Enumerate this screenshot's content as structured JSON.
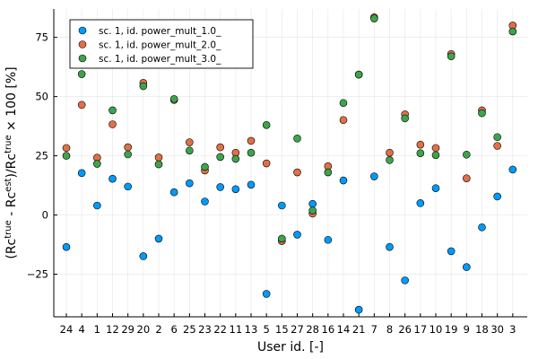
{
  "chart_data": {
    "type": "scatter",
    "xlabel": "User id. [-]",
    "ylabel_parts": [
      "(Rc",
      "true",
      " - Rc",
      "est",
      ")/Rc",
      "true",
      " × 100 [%]"
    ],
    "categories": [
      "24",
      "4",
      "1",
      "12",
      "29",
      "20",
      "2",
      "6",
      "25",
      "23",
      "22",
      "11",
      "13",
      "5",
      "15",
      "27",
      "28",
      "16",
      "14",
      "21",
      "7",
      "8",
      "26",
      "17",
      "10",
      "19",
      "9",
      "18",
      "30",
      "3"
    ],
    "ylim": [
      -43,
      87
    ],
    "yticks": [
      -25,
      0,
      25,
      50,
      75
    ],
    "ytick_labels": [
      "−25",
      "0",
      "25",
      "50",
      "75"
    ],
    "grid": true,
    "legend_position": "top-left",
    "series": [
      {
        "name": "sc. 1, id. power_mult_1.0_",
        "color": "#009af9",
        "values": [
          -13.5,
          17.7,
          4,
          15.3,
          12,
          -17.4,
          -10,
          9.6,
          13.4,
          5.7,
          11.8,
          10.9,
          12.8,
          -33.3,
          4,
          -8.3,
          4.7,
          -10.5,
          14.6,
          -40,
          16.3,
          -13.5,
          -27.6,
          5,
          11.3,
          -15.3,
          -22,
          -5.2,
          7.8,
          19.2
        ]
      },
      {
        "name": "sc. 1, id. power_mult_2.0_",
        "color": "#e26f46",
        "values": [
          28.3,
          46.5,
          24.2,
          38.3,
          28.6,
          55.8,
          24.3,
          48.6,
          30.7,
          18.8,
          28.6,
          26.3,
          31.3,
          21.8,
          -11,
          18,
          0.6,
          20.6,
          40.1,
          59.3,
          83.5,
          26.3,
          42.5,
          29.7,
          28.3,
          68,
          15.5,
          44.2,
          29.2,
          80
        ]
      },
      {
        "name": "sc. 1, id. power_mult_3.0_",
        "color": "#3da44d",
        "values": [
          25,
          59.5,
          21.6,
          44.2,
          25.6,
          54.4,
          21.4,
          49,
          27.2,
          20.3,
          24.5,
          23.7,
          26.3,
          38,
          -10,
          32.3,
          1.9,
          18,
          47.3,
          59.3,
          83,
          23.2,
          40.8,
          26.1,
          25.3,
          67,
          25.5,
          43,
          32.9,
          77.5
        ]
      }
    ]
  }
}
